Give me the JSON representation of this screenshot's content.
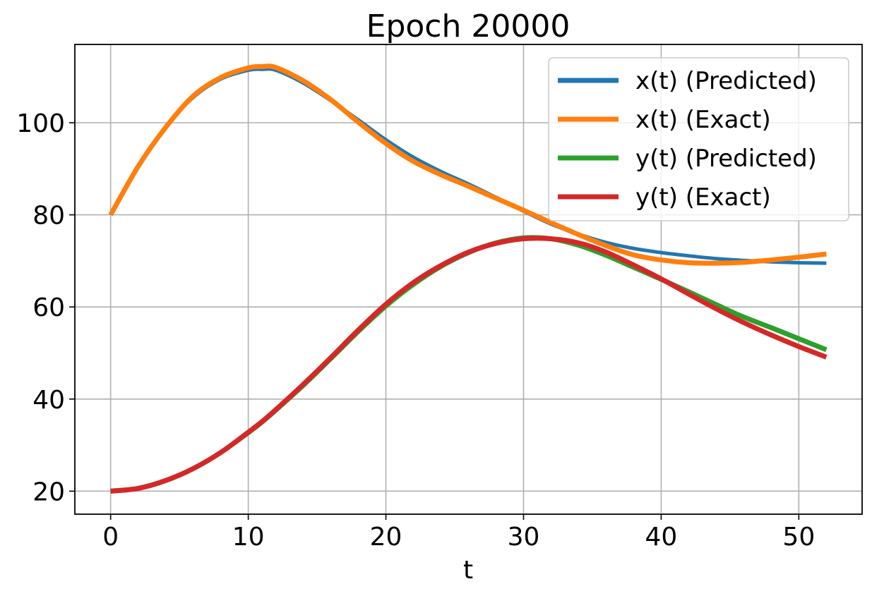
{
  "chart_data": {
    "type": "line",
    "title": "Epoch 20000",
    "xlabel": "t",
    "ylabel": "",
    "xlim": [
      -2.6,
      54.6
    ],
    "ylim": [
      15,
      117
    ],
    "xticks": [
      0,
      10,
      20,
      30,
      40,
      50
    ],
    "yticks": [
      20,
      40,
      60,
      80,
      100
    ],
    "grid": true,
    "legend_position": "top-right",
    "x": [
      0,
      2,
      4,
      6,
      8,
      10,
      11,
      12,
      14,
      16,
      18,
      20,
      22,
      24,
      26,
      28,
      30,
      32,
      34,
      36,
      38,
      40,
      42,
      44,
      46,
      48,
      50,
      52
    ],
    "series": [
      {
        "name": "x(t) (Predicted)",
        "color": "#1f77b4",
        "values": [
          80,
          90.5,
          99,
          105.5,
          109.5,
          111.4,
          111.6,
          111.4,
          108.6,
          104.8,
          100.6,
          96.3,
          92.5,
          89.4,
          86.7,
          83.8,
          80.8,
          78,
          75.8,
          74,
          72.7,
          71.8,
          71.1,
          70.5,
          70.1,
          69.8,
          69.6,
          69.5
        ]
      },
      {
        "name": "x(t) (Exact)",
        "color": "#ff7f0e",
        "values": [
          80,
          90.5,
          99,
          105.8,
          109.8,
          111.9,
          112.2,
          112,
          109.1,
          105,
          100.1,
          95.5,
          91.6,
          88.7,
          86.2,
          83.6,
          81,
          78.3,
          75.7,
          73.3,
          71.3,
          70.2,
          69.6,
          69.5,
          69.7,
          70.2,
          70.8,
          71.5
        ]
      },
      {
        "name": "y(t) (Predicted)",
        "color": "#2ca02c",
        "values": [
          20,
          20.6,
          22.3,
          24.9,
          28.4,
          32.7,
          35,
          37.6,
          43,
          48.8,
          54.7,
          60.2,
          64.9,
          68.8,
          71.8,
          73.9,
          75,
          74.8,
          73.4,
          71.2,
          68.6,
          66,
          63.3,
          60.5,
          57.8,
          55.5,
          53.1,
          50.7
        ]
      },
      {
        "name": "y(t) (Exact)",
        "color": "#d62728",
        "values": [
          20,
          20.6,
          22.3,
          24.9,
          28.4,
          32.8,
          35.1,
          37.7,
          43.2,
          49,
          55,
          60.6,
          65.3,
          69,
          71.9,
          73.8,
          74.8,
          74.8,
          73.9,
          71.9,
          69.1,
          66.1,
          62.8,
          59.6,
          56.6,
          53.9,
          51.4,
          49.1
        ]
      }
    ]
  }
}
